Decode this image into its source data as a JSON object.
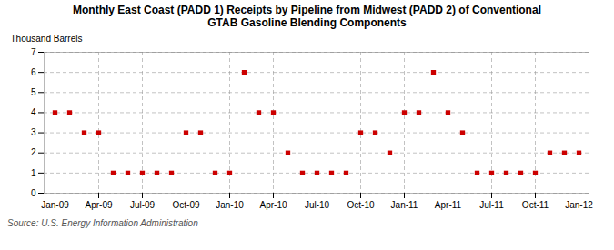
{
  "chart_data": {
    "type": "scatter",
    "title": "Monthly East Coast (PADD 1) Receipts by Pipeline from Midwest (PADD 2) of Conventional\nGTAB Gasoline Blending Components",
    "ylabel": "Thousand Barrels",
    "source": "Source: U.S. Energy Information Administration",
    "categories": [
      "Jan-09",
      null,
      null,
      "Apr-09",
      null,
      null,
      "Jul-09",
      null,
      null,
      "Oct-09",
      null,
      null,
      "Jan-10",
      null,
      null,
      "Apr-10",
      null,
      null,
      "Jul-10",
      null,
      null,
      "Oct-10",
      null,
      null,
      "Jan-11",
      null,
      null,
      "Apr-11",
      null,
      null,
      "Jul-11",
      null,
      null,
      "Oct-11",
      null,
      null,
      "Jan-12"
    ],
    "values": [
      4,
      4,
      3,
      3,
      1,
      1,
      1,
      1,
      1,
      3,
      3,
      1,
      1,
      6,
      4,
      4,
      2,
      1,
      1,
      1,
      1,
      3,
      3,
      2,
      4,
      4,
      6,
      4,
      3,
      1,
      1,
      1,
      1,
      1,
      2,
      2,
      2
    ],
    "color": "#cc0000",
    "marker": "square",
    "ylim": [
      0,
      7
    ],
    "yticks": [
      0,
      1,
      2,
      3,
      4,
      5,
      6,
      7
    ],
    "grid": true
  }
}
